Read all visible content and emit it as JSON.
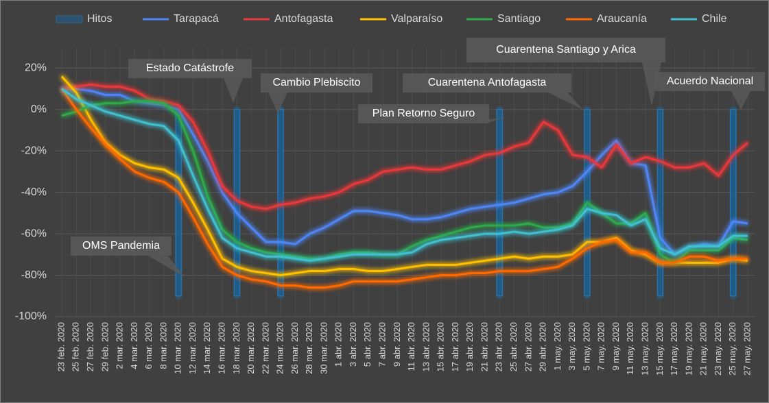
{
  "chart_data": {
    "type": "line",
    "categories": [
      "23 feb. 2020",
      "25 feb. 2020",
      "27 feb. 2020",
      "29 feb. 2020",
      "2 mar. 2020",
      "4 mar. 2020",
      "6 mar. 2020",
      "8 mar. 2020",
      "10 mar. 2020",
      "12 mar. 2020",
      "14 mar. 2020",
      "16 mar. 2020",
      "18 mar. 2020",
      "20 mar. 2020",
      "22 mar. 2020",
      "24 mar. 2020",
      "26 mar. 2020",
      "28 mar. 2020",
      "30 mar. 2020",
      "1 abr. 2020",
      "3 abr. 2020",
      "5 abr. 2020",
      "7 abr. 2020",
      "9 abr. 2020",
      "11 abr. 2020",
      "13 abr. 2020",
      "15 abr. 2020",
      "17 abr. 2020",
      "19 abr. 2020",
      "21 abr. 2020",
      "23 abr. 2020",
      "25 abr. 2020",
      "27 abr. 2020",
      "29 abr. 2020",
      "1 may. 2020",
      "3 may. 2020",
      "5 may. 2020",
      "7 may. 2020",
      "9 may. 2020",
      "11 may. 2020",
      "13 may. 2020",
      "15 may. 2020",
      "17 may. 2020",
      "19 may. 2020",
      "21 may. 2020",
      "23 may. 2020",
      "25 may. 2020",
      "27 may. 2020"
    ],
    "series": [
      {
        "name": "Hitos",
        "type": "bar",
        "color": "#1f5f8f",
        "values": [
          null,
          null,
          null,
          null,
          null,
          null,
          null,
          null,
          -90,
          null,
          null,
          null,
          -90,
          null,
          null,
          -90,
          null,
          null,
          null,
          null,
          null,
          null,
          null,
          null,
          null,
          null,
          null,
          null,
          null,
          null,
          -90,
          null,
          null,
          null,
          null,
          null,
          -90,
          null,
          null,
          null,
          null,
          -90,
          null,
          null,
          null,
          null,
          -90,
          null
        ]
      },
      {
        "name": "Tarapacá",
        "color": "#4f86f7",
        "values": [
          10,
          10,
          9,
          7,
          7,
          4,
          3,
          2,
          0,
          -12,
          -25,
          -40,
          -50,
          -57,
          -64,
          -64,
          -65,
          -60,
          -57,
          -53,
          -49,
          -49,
          -50,
          -51,
          -53,
          -53,
          -52,
          -50,
          -48,
          -47,
          -46,
          -45,
          -43,
          -41,
          -40,
          -37,
          -30,
          -22,
          -15,
          -26,
          -27,
          -62,
          -70,
          -67,
          -65,
          -66,
          -54,
          -55
        ]
      },
      {
        "name": "Antofagasta",
        "color": "#e8393a",
        "values": [
          10,
          11,
          12,
          11,
          11,
          9,
          5,
          4,
          2,
          -6,
          -20,
          -37,
          -44,
          -47,
          -48,
          -46,
          -45,
          -43,
          -42,
          -40,
          -36,
          -34,
          -30,
          -29,
          -28,
          -29,
          -29,
          -27,
          -25,
          -22,
          -21,
          -18,
          -16,
          -6,
          -10,
          -22,
          -23,
          -28,
          -17,
          -26,
          -23,
          -25,
          -28,
          -28,
          -26,
          -32,
          -22,
          -16
        ]
      },
      {
        "name": "Valparaíso",
        "color": "#ffc000",
        "values": [
          16,
          8,
          -5,
          -16,
          -22,
          -26,
          -28,
          -29,
          -33,
          -45,
          -58,
          -72,
          -76,
          -78,
          -79,
          -80,
          -79,
          -78,
          -78,
          -77,
          -77,
          -78,
          -78,
          -77,
          -76,
          -75,
          -75,
          -75,
          -74,
          -73,
          -72,
          -71,
          -72,
          -71,
          -71,
          -70,
          -64,
          -64,
          -62,
          -68,
          -70,
          -74,
          -74,
          -74,
          -74,
          -74,
          -72,
          -73
        ]
      },
      {
        "name": "Santiago",
        "color": "#2eaa4a",
        "values": [
          -3,
          -1,
          2,
          3,
          3,
          4,
          4,
          3,
          -3,
          -20,
          -42,
          -58,
          -64,
          -67,
          -69,
          -70,
          -71,
          -72,
          -72,
          -70,
          -69,
          -69,
          -70,
          -70,
          -66,
          -63,
          -61,
          -59,
          -57,
          -56,
          -56,
          -56,
          -55,
          -57,
          -57,
          -55,
          -45,
          -50,
          -55,
          -55,
          -50,
          -70,
          -74,
          -68,
          -68,
          -68,
          -62,
          -63
        ]
      },
      {
        "name": "Araucanía",
        "color": "#ff6a00",
        "values": [
          10,
          0,
          -9,
          -17,
          -24,
          -30,
          -33,
          -35,
          -40,
          -52,
          -65,
          -76,
          -80,
          -82,
          -83,
          -85,
          -85,
          -86,
          -86,
          -85,
          -83,
          -83,
          -83,
          -83,
          -82,
          -81,
          -80,
          -80,
          -79,
          -79,
          -78,
          -78,
          -78,
          -77,
          -76,
          -72,
          -67,
          -64,
          -63,
          -69,
          -69,
          -74,
          -74,
          -71,
          -71,
          -73,
          -72,
          -72
        ]
      },
      {
        "name": "Chile",
        "color": "#40c0d0",
        "values": [
          10,
          5,
          2,
          -1,
          -3,
          -5,
          -7,
          -8,
          -15,
          -32,
          -48,
          -62,
          -67,
          -69,
          -71,
          -71,
          -72,
          -73,
          -72,
          -71,
          -70,
          -70,
          -70,
          -70,
          -69,
          -65,
          -63,
          -62,
          -61,
          -60,
          -60,
          -59,
          -60,
          -59,
          -58,
          -56,
          -48,
          -50,
          -51,
          -56,
          -53,
          -67,
          -70,
          -66,
          -66,
          -66,
          -61,
          -61
        ]
      }
    ],
    "annotations": [
      "OMS Pandemia",
      "Estado Catástrofe",
      "Cambio Plebiscito",
      "Plan Retorno Seguro",
      "Cuarentena Antofagasta",
      "Cuarentena Santiago y Arica",
      "Acuerdo Nacional"
    ],
    "ylim": [
      -100,
      30
    ],
    "yticks": [
      {
        "value": -100,
        "label": "-100%"
      },
      {
        "value": -80,
        "label": "-80%"
      },
      {
        "value": -60,
        "label": "-60%"
      },
      {
        "value": -40,
        "label": "-40%"
      },
      {
        "value": -20,
        "label": "-20%"
      },
      {
        "value": 0,
        "label": "0%"
      },
      {
        "value": 20,
        "label": "20%"
      }
    ],
    "grid": true,
    "legend": "top"
  }
}
